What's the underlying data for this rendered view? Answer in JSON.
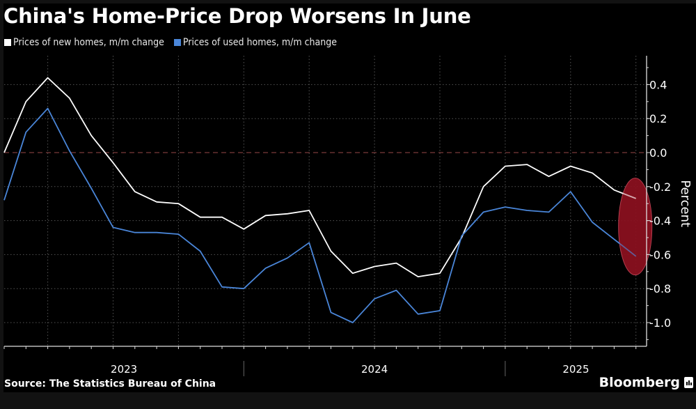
{
  "header": {
    "title": "China's Home-Price Drop Worsens In June"
  },
  "legend": [
    {
      "label": "Prices of new homes, m/m change",
      "color": "#ffffff"
    },
    {
      "label": "Prices of used homes, m/m change",
      "color": "#4a86d9"
    }
  ],
  "footer": {
    "source": "Source: The Statistics Bureau of China",
    "brand": "Bloomberg"
  },
  "colors": {
    "background": "#000000",
    "zero_line": "#7a3a3a",
    "highlight": "#8b1120",
    "grid": "#555555"
  },
  "chart_data": {
    "type": "line",
    "title": "China's Home-Price Drop Worsens In June",
    "xlabel": "",
    "ylabel": "Percent",
    "ylim": [
      -1.1,
      0.55
    ],
    "yticks": [
      0.4,
      0.2,
      0.0,
      -0.2,
      -0.4,
      -0.6,
      -0.8,
      -1.0
    ],
    "ytick_labels": [
      "0.4",
      "0.2",
      "0.0",
      "-0.2",
      "-0.4",
      "-0.6",
      "-0.8",
      "-1.0"
    ],
    "x_year_labels": [
      "2023",
      "2024",
      "2025"
    ],
    "grid": true,
    "legend_position": "top-left",
    "x": [
      "2023-01",
      "2023-02",
      "2023-03",
      "2023-04",
      "2023-05",
      "2023-06",
      "2023-07",
      "2023-08",
      "2023-09",
      "2023-10",
      "2023-11",
      "2023-12",
      "2024-01",
      "2024-02",
      "2024-03",
      "2024-04",
      "2024-05",
      "2024-06",
      "2024-07",
      "2024-08",
      "2024-09",
      "2024-10",
      "2024-11",
      "2024-12",
      "2025-01",
      "2025-02",
      "2025-03",
      "2025-04",
      "2025-05",
      "2025-06"
    ],
    "series": [
      {
        "name": "Prices of new homes, m/m change",
        "color": "#ffffff",
        "values": [
          0.0,
          0.3,
          0.44,
          0.32,
          0.1,
          -0.06,
          -0.23,
          -0.29,
          -0.3,
          -0.38,
          -0.38,
          -0.45,
          -0.37,
          -0.36,
          -0.34,
          -0.58,
          -0.71,
          -0.67,
          -0.65,
          -0.73,
          -0.71,
          -0.5,
          -0.2,
          -0.08,
          -0.07,
          -0.14,
          -0.08,
          -0.12,
          -0.22,
          -0.27
        ]
      },
      {
        "name": "Prices of used homes, m/m change",
        "color": "#4a86d9",
        "values": [
          -0.28,
          0.12,
          0.26,
          0.01,
          -0.21,
          -0.44,
          -0.47,
          -0.47,
          -0.48,
          -0.58,
          -0.79,
          -0.8,
          -0.68,
          -0.62,
          -0.53,
          -0.94,
          -1.0,
          -0.86,
          -0.81,
          -0.95,
          -0.93,
          -0.49,
          -0.35,
          -0.32,
          -0.34,
          -0.35,
          -0.23,
          -0.41,
          -0.51,
          -0.61
        ]
      }
    ],
    "annotations": [
      {
        "type": "ellipse-highlight",
        "target": "2025-06",
        "y_range": [
          -0.72,
          -0.15
        ],
        "color": "#8b1120"
      }
    ],
    "reference_line": {
      "y": 0.0,
      "style": "dashed"
    }
  }
}
